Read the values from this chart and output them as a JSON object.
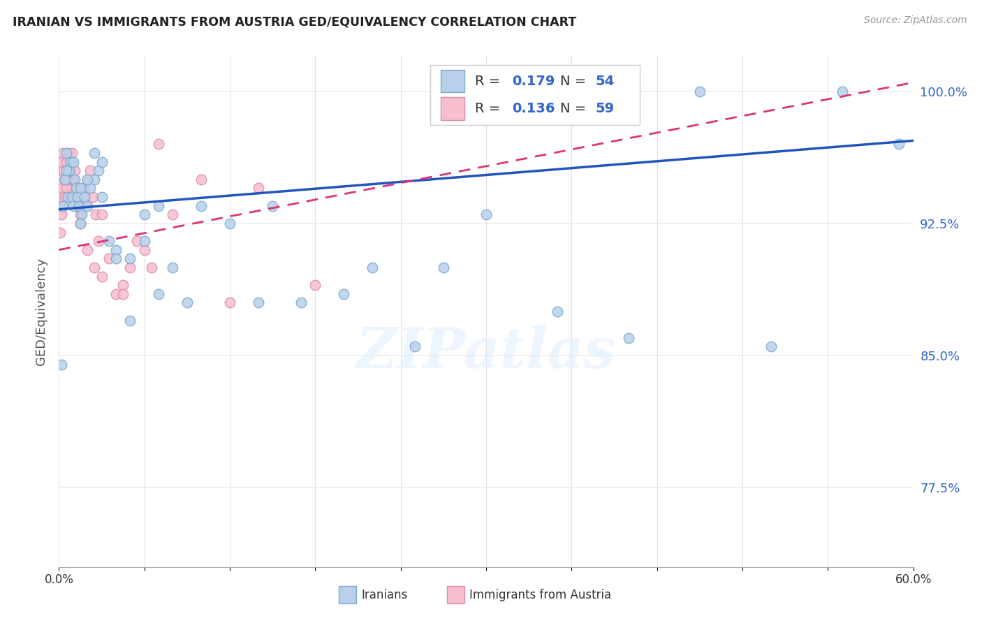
{
  "title": "IRANIAN VS IMMIGRANTS FROM AUSTRIA GED/EQUIVALENCY CORRELATION CHART",
  "source": "Source: ZipAtlas.com",
  "ylabel": "GED/Equivalency",
  "yticks": [
    77.5,
    85.0,
    92.5,
    100.0
  ],
  "ytick_labels": [
    "77.5%",
    "85.0%",
    "92.5%",
    "100.0%"
  ],
  "xlim": [
    0.0,
    60.0
  ],
  "ylim": [
    73.0,
    102.0
  ],
  "legend_r1": "0.179",
  "legend_n1": "54",
  "legend_r2": "0.136",
  "legend_n2": "59",
  "series1_color": "#b8d0ea",
  "series1_edge": "#7aaad0",
  "series2_color": "#f5bfce",
  "series2_edge": "#e08aaa",
  "trend1_color": "#2255bb",
  "trend2_color": "#dd3377",
  "background_color": "#ffffff",
  "watermark": "ZIPatlas",
  "iranians_x": [
    0.2,
    0.3,
    0.4,
    0.5,
    0.6,
    0.7,
    0.8,
    0.9,
    1.0,
    1.1,
    1.2,
    1.3,
    1.4,
    1.5,
    1.6,
    1.8,
    2.0,
    2.2,
    2.5,
    2.8,
    3.0,
    3.5,
    4.0,
    5.0,
    6.0,
    7.0,
    8.0,
    9.0,
    10.0,
    12.0,
    14.0,
    15.0,
    17.0,
    20.0,
    22.0,
    25.0,
    27.0,
    30.0,
    35.0,
    40.0,
    45.0,
    50.0,
    55.0,
    59.0,
    0.5,
    1.0,
    1.5,
    2.0,
    2.5,
    3.0,
    4.0,
    5.0,
    6.0,
    7.0
  ],
  "iranians_y": [
    84.5,
    93.5,
    95.0,
    96.5,
    94.0,
    95.5,
    96.0,
    94.0,
    93.5,
    95.0,
    94.5,
    94.0,
    93.5,
    94.5,
    93.0,
    94.0,
    93.5,
    94.5,
    95.0,
    95.5,
    96.0,
    91.5,
    91.0,
    90.5,
    93.0,
    93.5,
    90.0,
    88.0,
    93.5,
    92.5,
    88.0,
    93.5,
    88.0,
    88.5,
    90.0,
    85.5,
    90.0,
    93.0,
    87.5,
    86.0,
    100.0,
    85.5,
    100.0,
    97.0,
    95.5,
    96.0,
    92.5,
    95.0,
    96.5,
    94.0,
    90.5,
    87.0,
    91.5,
    88.5
  ],
  "austria_x": [
    0.05,
    0.1,
    0.15,
    0.2,
    0.25,
    0.3,
    0.35,
    0.4,
    0.45,
    0.5,
    0.6,
    0.7,
    0.8,
    0.9,
    1.0,
    1.1,
    1.2,
    1.3,
    1.4,
    1.5,
    1.6,
    1.7,
    1.8,
    1.9,
    2.0,
    2.2,
    2.4,
    2.6,
    2.8,
    3.0,
    3.5,
    4.0,
    4.5,
    5.0,
    5.5,
    6.0,
    7.0,
    8.0,
    10.0,
    12.0,
    14.0,
    18.0,
    0.1,
    0.2,
    0.3,
    0.4,
    0.5,
    0.6,
    0.7,
    0.8,
    0.9,
    1.0,
    1.2,
    1.5,
    2.0,
    2.5,
    3.0,
    4.5,
    6.5
  ],
  "austria_y": [
    93.5,
    94.0,
    95.0,
    96.0,
    94.5,
    96.5,
    95.5,
    95.0,
    94.0,
    96.0,
    95.5,
    96.5,
    95.0,
    94.5,
    95.0,
    95.5,
    94.5,
    94.0,
    93.5,
    93.0,
    93.5,
    94.0,
    94.5,
    93.5,
    95.0,
    95.5,
    94.0,
    93.0,
    91.5,
    93.0,
    90.5,
    88.5,
    89.0,
    90.0,
    91.5,
    91.0,
    97.0,
    93.0,
    95.0,
    88.0,
    94.5,
    89.0,
    92.0,
    93.0,
    93.5,
    94.0,
    94.5,
    95.0,
    95.5,
    96.0,
    96.5,
    95.0,
    94.0,
    92.5,
    91.0,
    90.0,
    89.5,
    88.5,
    90.0
  ]
}
